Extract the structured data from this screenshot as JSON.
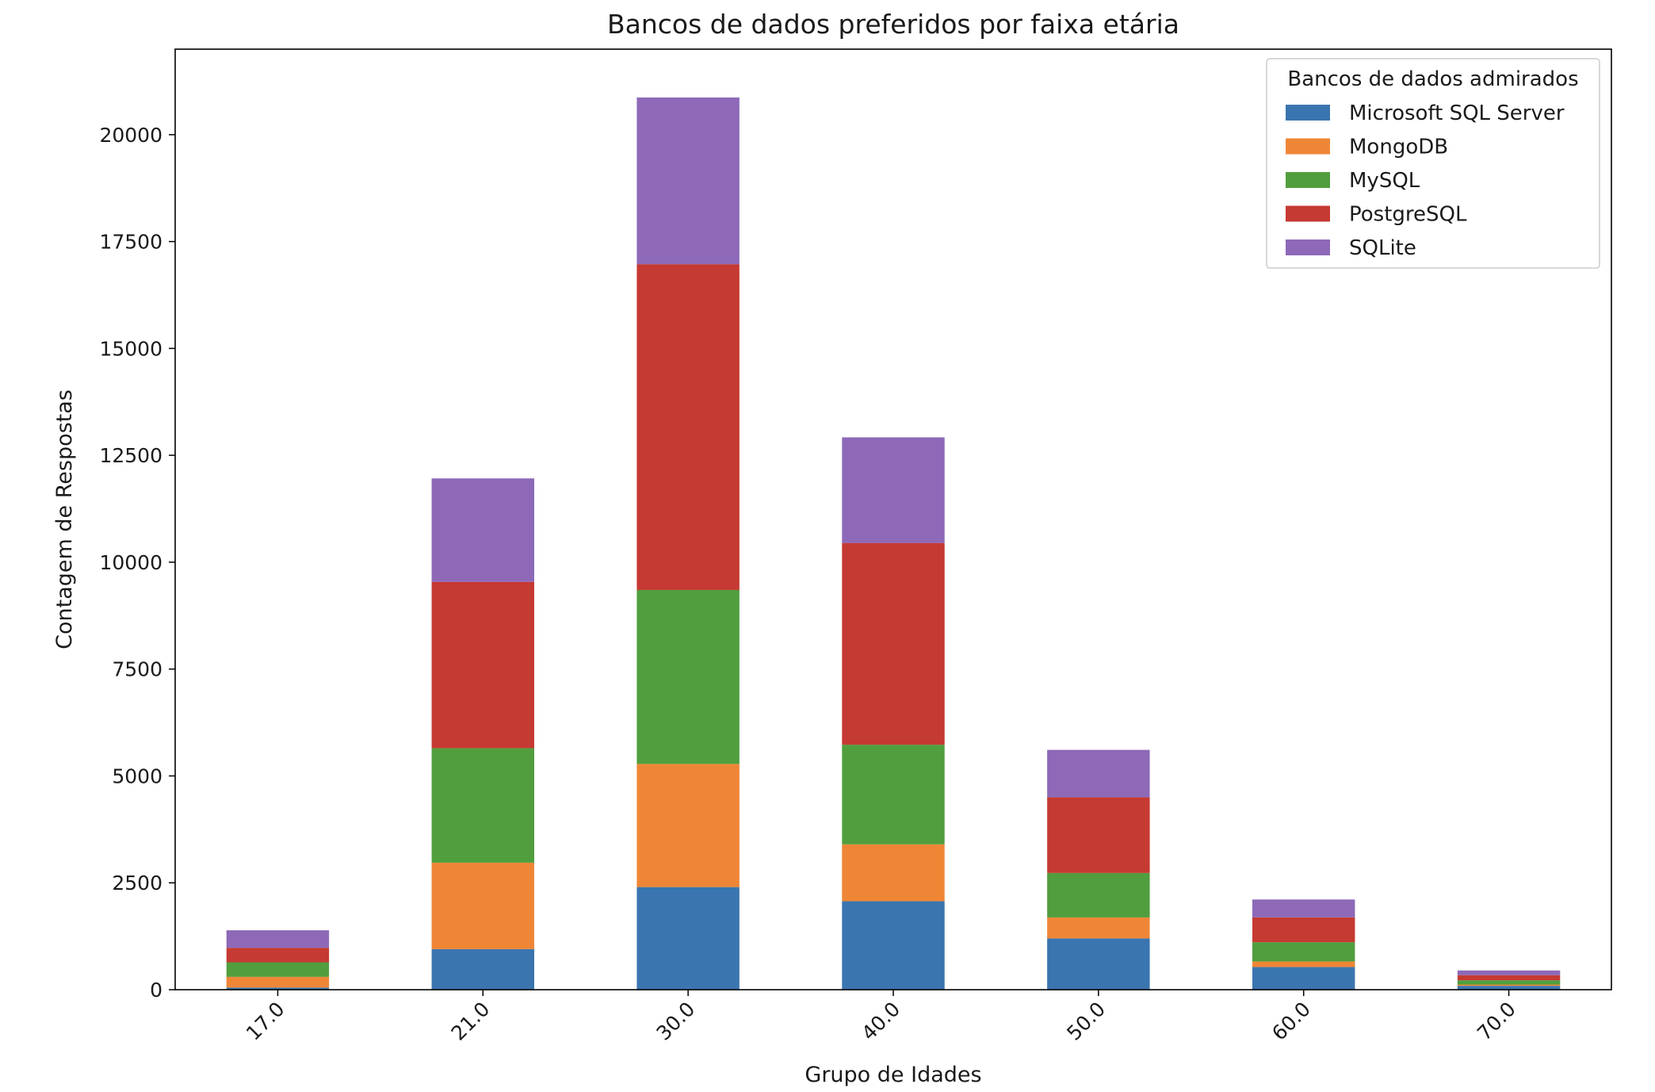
{
  "chart_data": {
    "type": "bar",
    "stacked": true,
    "title": "Bancos de dados preferidos por faixa etária",
    "xlabel": "Grupo de Idades",
    "ylabel": "Contagem de Respostas",
    "categories": [
      "17.0",
      "21.0",
      "30.0",
      "40.0",
      "50.0",
      "60.0",
      "70.0"
    ],
    "ylim": [
      0,
      22000
    ],
    "yticks": [
      0,
      2500,
      5000,
      7500,
      10000,
      12500,
      15000,
      17500,
      20000
    ],
    "grid": false,
    "legend": {
      "title": "Bancos de dados admirados",
      "position": "top-right"
    },
    "series": [
      {
        "name": "Microsoft SQL Server",
        "color": "#3a75af",
        "values": [
          50,
          950,
          2400,
          2070,
          1200,
          530,
          90
        ]
      },
      {
        "name": "MongoDB",
        "color": "#ef8636",
        "values": [
          250,
          2020,
          2880,
          1330,
          490,
          130,
          30
        ]
      },
      {
        "name": "MySQL",
        "color": "#519e3e",
        "values": [
          340,
          2680,
          4070,
          2330,
          1040,
          450,
          100
        ]
      },
      {
        "name": "PostgreSQL",
        "color": "#c53a32",
        "values": [
          340,
          3890,
          7620,
          4720,
          1770,
          580,
          120
        ]
      },
      {
        "name": "SQLite",
        "color": "#8d69b8",
        "values": [
          410,
          2420,
          3900,
          2470,
          1110,
          420,
          110
        ]
      }
    ]
  }
}
